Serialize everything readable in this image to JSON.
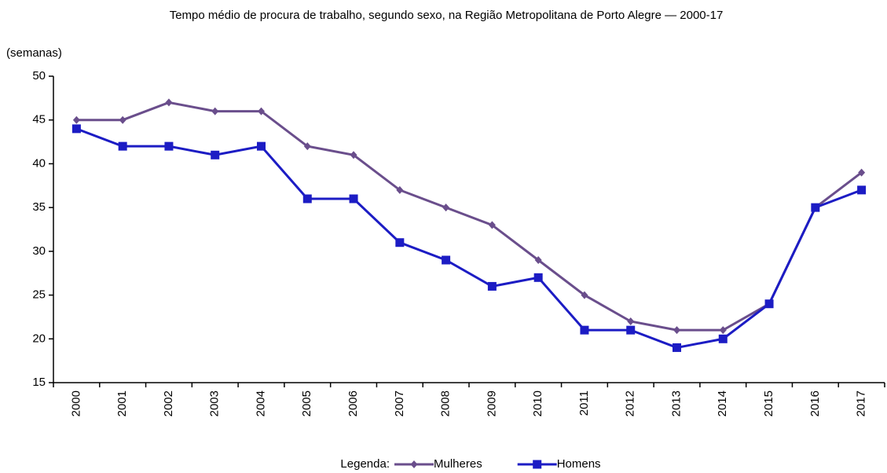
{
  "chart_data": {
    "type": "line",
    "title": "Tempo médio de procura de trabalho, segundo sexo, na Região Metropolitana de Porto Alegre — 2000-17",
    "y_label": "(semanas)",
    "legend_title": "Legenda:",
    "categories": [
      "2000",
      "2001",
      "2002",
      "2003",
      "2004",
      "2005",
      "2006",
      "2007",
      "2008",
      "2009",
      "2010",
      "2011",
      "2012",
      "2013",
      "2014",
      "2015",
      "2016",
      "2017"
    ],
    "series": [
      {
        "name": "Mulheres",
        "color": "#6a4e8c",
        "marker": "diamond",
        "values": [
          45,
          45,
          47,
          46,
          46,
          42,
          41,
          37,
          35,
          33,
          29,
          25,
          22,
          21,
          21,
          24,
          35,
          39
        ]
      },
      {
        "name": "Homens",
        "color": "#1c1cc4",
        "marker": "square",
        "values": [
          44,
          42,
          42,
          41,
          42,
          36,
          36,
          31,
          29,
          26,
          27,
          21,
          21,
          19,
          20,
          24,
          35,
          37
        ]
      }
    ],
    "ylim": [
      15,
      50
    ],
    "yticks": [
      15,
      20,
      25,
      30,
      35,
      40,
      45,
      50
    ],
    "grid": false
  }
}
